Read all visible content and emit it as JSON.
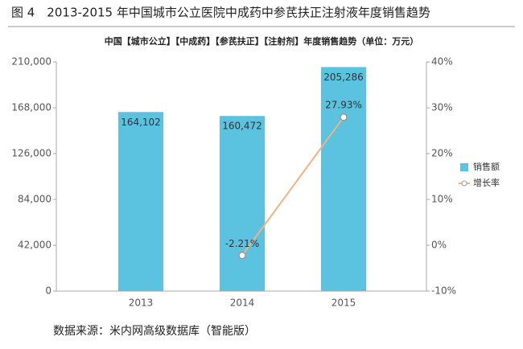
{
  "figure_caption": "图 4　2013-2015 年中国城市公立医院中成药中参芪扶正注射液年度销售趋势",
  "source": "数据来源：米内网高级数据库（智能版）",
  "chart_data": {
    "type": "bar-line",
    "title": "中国【城市公立】【中成药】【参芪扶正】【注射剂】年度销售趋势（单位：万元）",
    "categories": [
      "2013",
      "2014",
      "2015"
    ],
    "series": [
      {
        "name": "销售额",
        "type": "bar",
        "color": "#5bc2df",
        "values": [
          164102,
          160472,
          205286
        ],
        "value_labels": [
          "164,102",
          "160,472",
          "205,286"
        ]
      },
      {
        "name": "增长率",
        "type": "line",
        "axis": "y2",
        "color": "#f4b183",
        "values": [
          null,
          -2.21,
          27.93
        ],
        "value_labels": [
          null,
          "-2.21%",
          "27.93%"
        ]
      }
    ],
    "ylim": [
      0,
      210000
    ],
    "yticks": [
      0,
      {
        "value": 42000,
        "label": "42,000"
      },
      {
        "value": 84000,
        "label": "84,000"
      },
      {
        "value": 126000,
        "label": "126,000"
      },
      {
        "value": 168000,
        "label": "168,000"
      },
      {
        "value": 210000,
        "label": "210,000"
      }
    ],
    "y2lim": [
      -10,
      40
    ],
    "y2ticks": [
      {
        "value": -10,
        "label": "-10%"
      },
      {
        "value": 0,
        "label": "0%"
      },
      {
        "value": 10,
        "label": "10%"
      },
      {
        "value": 20,
        "label": "20%"
      },
      {
        "value": 30,
        "label": "30%"
      },
      {
        "value": 40,
        "label": "40%"
      }
    ],
    "legend": "right"
  }
}
